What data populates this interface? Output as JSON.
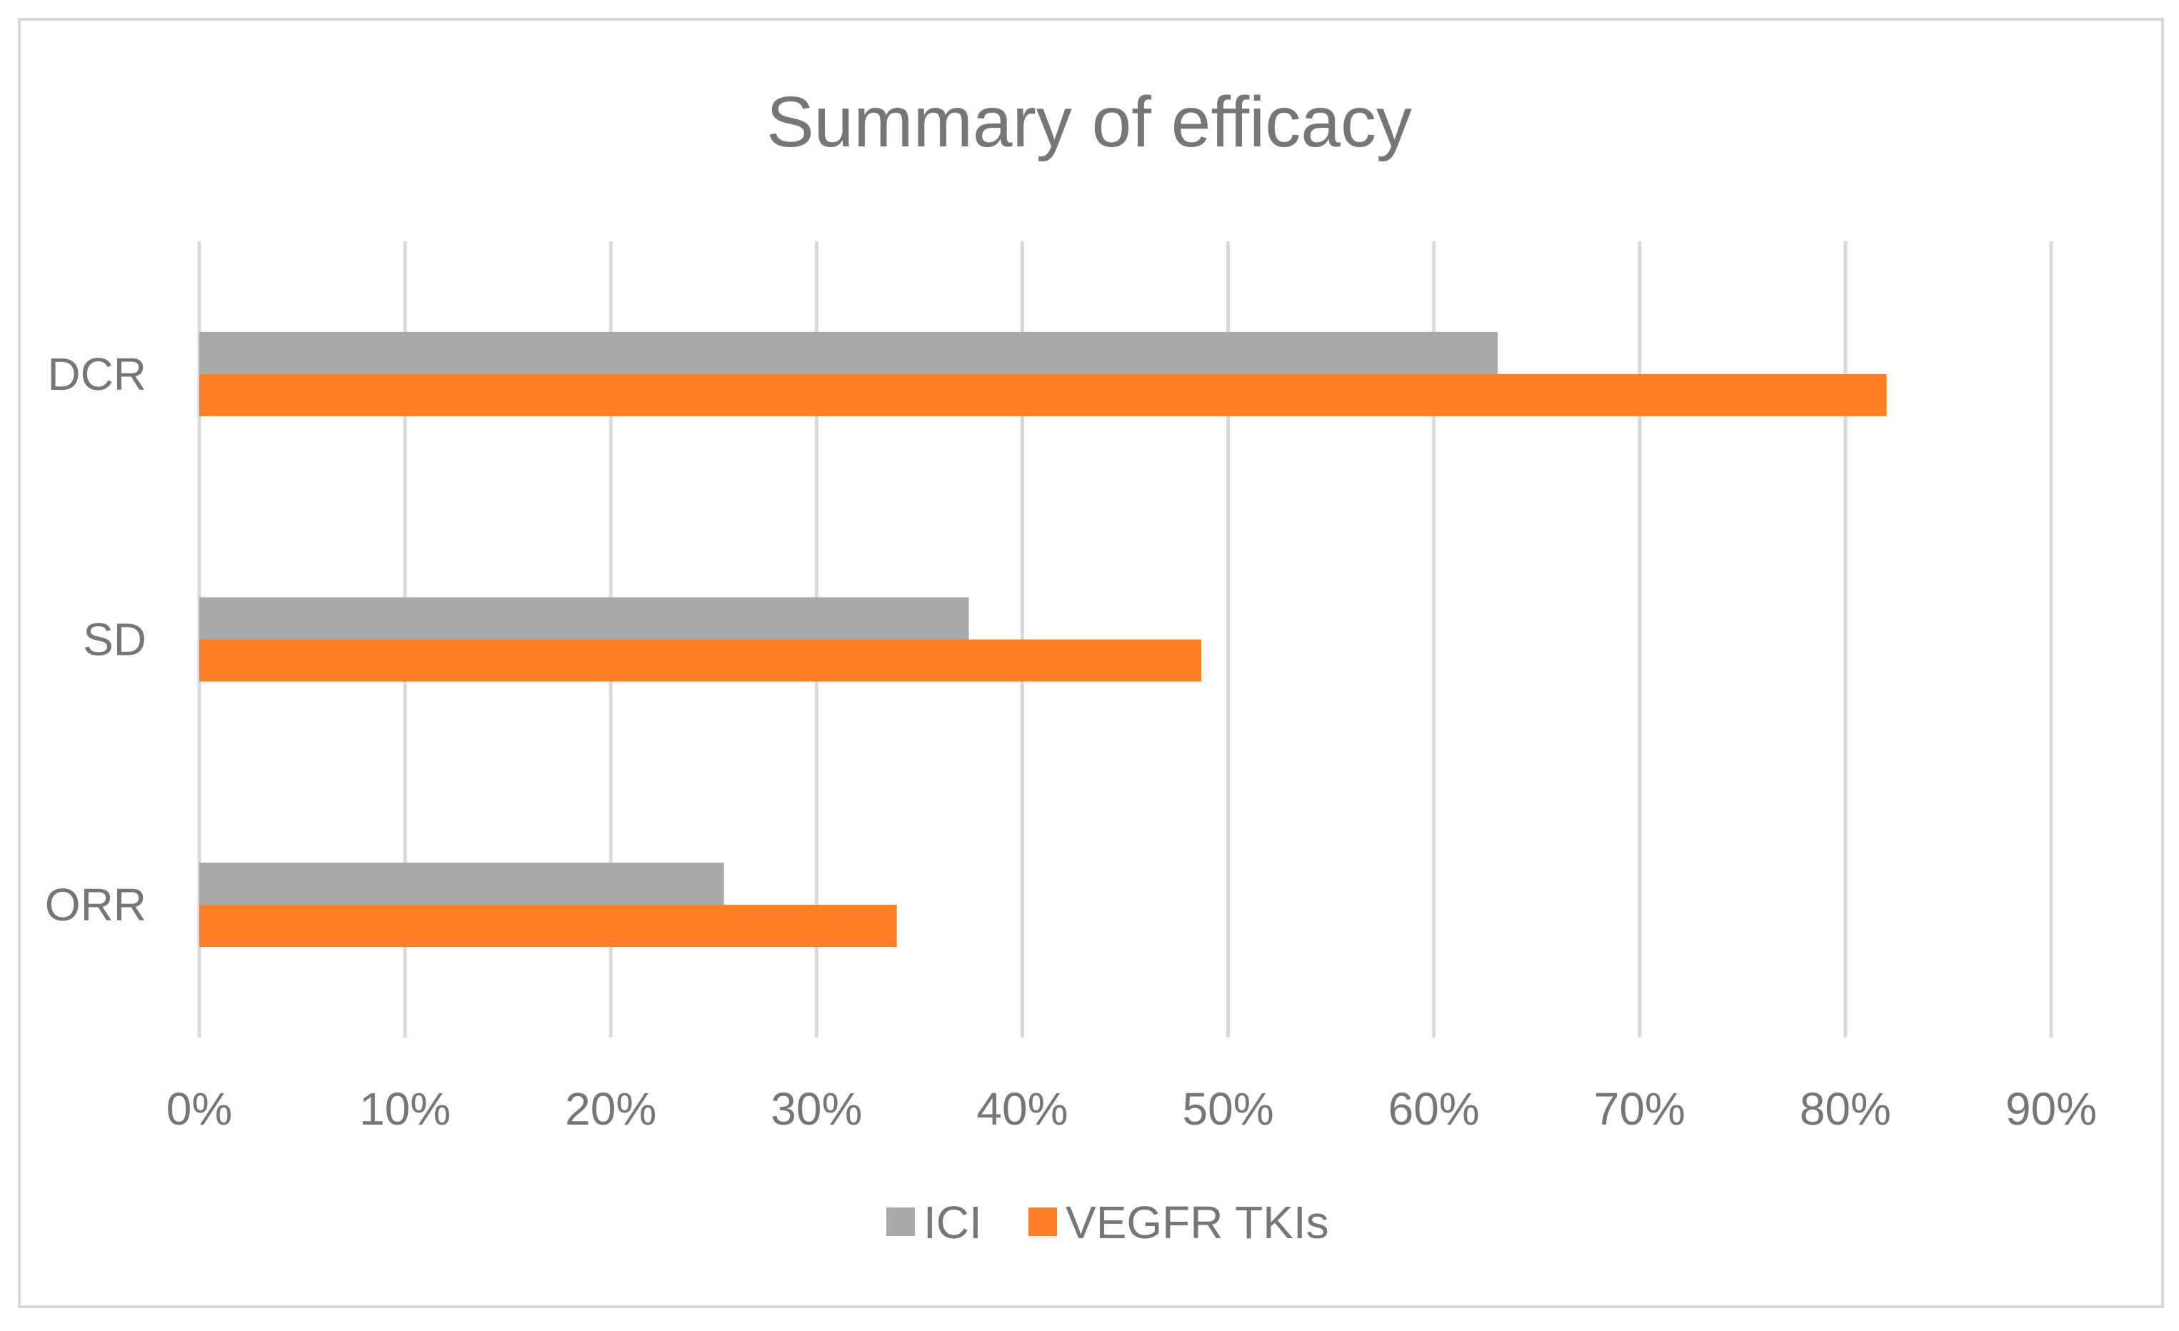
{
  "chart_data": {
    "type": "bar",
    "orientation": "horizontal",
    "title": "Summary of efficacy",
    "xlabel": "",
    "ylabel": "",
    "categories": [
      "DCR",
      "SD",
      "ORR"
    ],
    "series": [
      {
        "name": "ICI",
        "color": "#a9a9a9",
        "values": [
          63.1,
          37.4,
          25.5
        ]
      },
      {
        "name": "VEGFR TKIs",
        "color": "#ff7f27",
        "values": [
          82.0,
          48.7,
          33.9
        ]
      }
    ],
    "xlim": [
      0,
      90
    ],
    "xticks": [
      0,
      10,
      20,
      30,
      40,
      50,
      60,
      70,
      80,
      90
    ],
    "xtick_labels": [
      "0%",
      "10%",
      "20%",
      "30%",
      "40%",
      "50%",
      "60%",
      "70%",
      "80%",
      "90%"
    ],
    "grid": true,
    "legend_position": "bottom"
  }
}
